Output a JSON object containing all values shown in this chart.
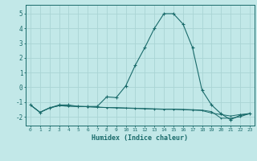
{
  "xlabel": "Humidex (Indice chaleur)",
  "background_color": "#c2e8e8",
  "grid_color": "#aad4d4",
  "line_color": "#1a6b6b",
  "xlim": [
    -0.5,
    23.5
  ],
  "ylim": [
    -2.6,
    5.6
  ],
  "xticks": [
    0,
    1,
    2,
    3,
    4,
    5,
    6,
    7,
    8,
    9,
    10,
    11,
    12,
    13,
    14,
    15,
    16,
    17,
    18,
    19,
    20,
    21,
    22,
    23
  ],
  "yticks": [
    -2,
    -1,
    0,
    1,
    2,
    3,
    4,
    5
  ],
  "series": [
    [
      0,
      -1.2
    ],
    [
      1,
      -1.7
    ],
    [
      2,
      -1.4
    ],
    [
      3,
      -1.2
    ],
    [
      4,
      -1.2
    ],
    [
      5,
      -1.3
    ],
    [
      6,
      -1.3
    ],
    [
      7,
      -1.3
    ],
    [
      8,
      -0.65
    ],
    [
      9,
      -0.7
    ],
    [
      10,
      0.1
    ],
    [
      11,
      1.5
    ],
    [
      12,
      2.7
    ],
    [
      13,
      4.0
    ],
    [
      14,
      5.0
    ],
    [
      15,
      5.0
    ],
    [
      16,
      4.3
    ],
    [
      17,
      2.7
    ],
    [
      18,
      -0.2
    ],
    [
      19,
      -1.2
    ],
    [
      20,
      -1.8
    ],
    [
      21,
      -2.2
    ],
    [
      22,
      -1.9
    ],
    [
      23,
      -1.8
    ]
  ],
  "flat_series1": [
    [
      0,
      -1.2
    ],
    [
      1,
      -1.7
    ],
    [
      2,
      -1.4
    ],
    [
      3,
      -1.25
    ],
    [
      4,
      -1.28
    ],
    [
      5,
      -1.3
    ],
    [
      6,
      -1.32
    ],
    [
      7,
      -1.35
    ],
    [
      8,
      -1.38
    ],
    [
      9,
      -1.4
    ],
    [
      10,
      -1.42
    ],
    [
      11,
      -1.44
    ],
    [
      12,
      -1.46
    ],
    [
      13,
      -1.48
    ],
    [
      14,
      -1.5
    ],
    [
      15,
      -1.5
    ],
    [
      16,
      -1.52
    ],
    [
      17,
      -1.55
    ],
    [
      18,
      -1.58
    ],
    [
      19,
      -1.75
    ],
    [
      20,
      -1.85
    ],
    [
      21,
      -1.95
    ],
    [
      22,
      -1.85
    ],
    [
      23,
      -1.78
    ]
  ],
  "flat_series2": [
    [
      0,
      -1.2
    ],
    [
      1,
      -1.7
    ],
    [
      2,
      -1.4
    ],
    [
      3,
      -1.25
    ],
    [
      4,
      -1.28
    ],
    [
      5,
      -1.3
    ],
    [
      6,
      -1.32
    ],
    [
      7,
      -1.35
    ],
    [
      8,
      -1.37
    ],
    [
      9,
      -1.38
    ],
    [
      10,
      -1.4
    ],
    [
      11,
      -1.42
    ],
    [
      12,
      -1.44
    ],
    [
      13,
      -1.46
    ],
    [
      14,
      -1.48
    ],
    [
      15,
      -1.48
    ],
    [
      16,
      -1.5
    ],
    [
      17,
      -1.52
    ],
    [
      18,
      -1.55
    ],
    [
      19,
      -1.65
    ],
    [
      20,
      -2.1
    ],
    [
      21,
      -2.1
    ],
    [
      22,
      -2.0
    ],
    [
      23,
      -1.78
    ]
  ]
}
